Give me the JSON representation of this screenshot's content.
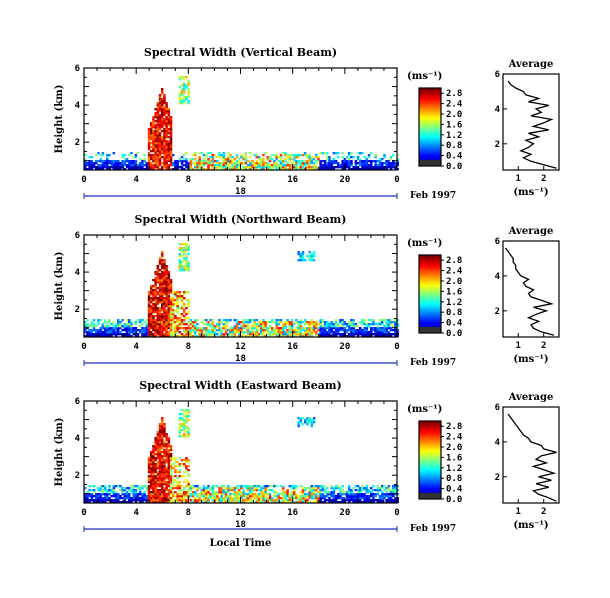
{
  "chart_data": [
    {
      "type": "heatmap",
      "title": "Spectral Width (Vertical Beam)",
      "ylabel": "Height (km)",
      "xlabel": "",
      "x_ticks": [
        "0",
        "4",
        "8",
        "12",
        "16",
        "20",
        "0"
      ],
      "y_ticks": [
        "2",
        "4",
        "6"
      ],
      "xlim": [
        0,
        24
      ],
      "ylim": [
        0.5,
        6
      ],
      "date_label": "18",
      "month_label": "Feb 1997",
      "colorbar": {
        "unit": "(ms⁻¹)",
        "ticks": [
          "0.0",
          "0.4",
          "0.8",
          "1.2",
          "1.6",
          "2.0",
          "2.4",
          "2.8"
        ],
        "range": [
          0,
          3.0
        ]
      },
      "average": {
        "title": "Average",
        "xlabel": "(ms⁻¹)",
        "x_ticks": [
          "1",
          "2"
        ],
        "y_ticks": [
          "2",
          "4",
          "6"
        ],
        "xlim": [
          0.4,
          2.6
        ],
        "height": [
          0.6,
          0.8,
          1.0,
          1.2,
          1.4,
          1.6,
          1.8,
          2.0,
          2.2,
          2.4,
          2.6,
          2.8,
          3.0,
          3.2,
          3.4,
          3.6,
          3.8,
          4.0,
          4.2,
          4.4,
          4.6,
          4.8,
          5.0,
          5.2,
          5.4,
          5.6
        ],
        "value": [
          2.5,
          2.0,
          1.5,
          1.2,
          1.5,
          1.1,
          1.4,
          1.6,
          1.3,
          1.8,
          1.4,
          2.2,
          1.6,
          2.0,
          2.3,
          1.5,
          1.9,
          1.7,
          2.2,
          1.4,
          1.8,
          1.3,
          1.2,
          0.9,
          0.7,
          0.6
        ]
      }
    },
    {
      "type": "heatmap",
      "title": "Spectral Width (Northward Beam)",
      "ylabel": "Height (km)",
      "xlabel": "",
      "x_ticks": [
        "0",
        "4",
        "8",
        "12",
        "16",
        "20",
        "0"
      ],
      "y_ticks": [
        "2",
        "4",
        "6"
      ],
      "xlim": [
        0,
        24
      ],
      "ylim": [
        0.5,
        6
      ],
      "date_label": "18",
      "month_label": "Feb 1997",
      "colorbar": {
        "unit": "(ms⁻¹)",
        "ticks": [
          "0.0",
          "0.4",
          "0.8",
          "1.2",
          "1.6",
          "2.0",
          "2.4",
          "2.8"
        ],
        "range": [
          0,
          3.0
        ]
      },
      "average": {
        "title": "Average",
        "xlabel": "(ms⁻¹)",
        "x_ticks": [
          "1",
          "2"
        ],
        "y_ticks": [
          "2",
          "4",
          "6"
        ],
        "xlim": [
          0.4,
          2.6
        ],
        "height": [
          0.6,
          0.8,
          1.0,
          1.2,
          1.4,
          1.6,
          1.8,
          2.0,
          2.2,
          2.4,
          2.6,
          2.8,
          3.0,
          3.2,
          3.4,
          3.6,
          3.8,
          4.0,
          4.2,
          4.4,
          4.6,
          4.8,
          5.0,
          5.2,
          5.4,
          5.6
        ],
        "value": [
          2.4,
          1.9,
          1.6,
          1.5,
          1.8,
          1.4,
          1.7,
          2.1,
          1.6,
          2.3,
          1.9,
          1.5,
          1.4,
          1.6,
          1.3,
          1.2,
          1.4,
          1.1,
          1.0,
          0.9,
          0.9,
          0.8,
          0.8,
          0.7,
          0.6,
          0.5
        ]
      }
    },
    {
      "type": "heatmap",
      "title": "Spectral Width (Eastward Beam)",
      "ylabel": "Height (km)",
      "xlabel": "Local Time",
      "x_ticks": [
        "0",
        "4",
        "8",
        "12",
        "16",
        "20",
        "0"
      ],
      "y_ticks": [
        "2",
        "4",
        "6"
      ],
      "xlim": [
        0,
        24
      ],
      "ylim": [
        0.5,
        6
      ],
      "date_label": "18",
      "month_label": "Feb 1997",
      "colorbar": {
        "unit": "(ms⁻¹)",
        "ticks": [
          "0.0",
          "0.4",
          "0.8",
          "1.2",
          "1.6",
          "2.0",
          "2.4",
          "2.8"
        ],
        "range": [
          0,
          3.0
        ]
      },
      "average": {
        "title": "Average",
        "xlabel": "(ms⁻¹)",
        "x_ticks": [
          "1",
          "2"
        ],
        "y_ticks": [
          "2",
          "4",
          "6"
        ],
        "xlim": [
          0.4,
          2.6
        ],
        "height": [
          0.6,
          0.8,
          1.0,
          1.2,
          1.4,
          1.6,
          1.8,
          2.0,
          2.2,
          2.4,
          2.6,
          2.8,
          3.0,
          3.2,
          3.4,
          3.6,
          3.8,
          4.0,
          4.2,
          4.4,
          4.6,
          4.8,
          5.0,
          5.2,
          5.4,
          5.6
        ],
        "value": [
          2.5,
          2.2,
          1.8,
          1.6,
          2.2,
          1.7,
          2.3,
          1.8,
          2.4,
          2.0,
          1.6,
          2.1,
          1.7,
          1.9,
          2.5,
          2.0,
          1.9,
          1.5,
          1.4,
          1.2,
          1.1,
          1.0,
          0.9,
          0.8,
          0.7,
          0.6
        ]
      }
    }
  ]
}
